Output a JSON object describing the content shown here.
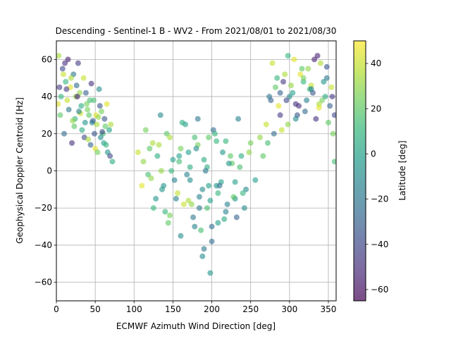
{
  "chart_data": {
    "type": "scatter",
    "title": "Descending - Sentinel-1 B - WV2 - From 2021/08/01 to 2021/08/30",
    "xlabel": "ECMWF Azimuth Wind Direction [deg]",
    "ylabel": "Geophysical Doppler Centroid [Hz]",
    "xlim": [
      0,
      360
    ],
    "ylim": [
      -70,
      70
    ],
    "xticks": [
      0,
      50,
      100,
      150,
      200,
      250,
      300,
      350
    ],
    "yticks": [
      -60,
      -40,
      -20,
      0,
      20,
      40,
      60
    ],
    "grid": true,
    "marker_alpha": 0.6,
    "colorbar": {
      "label": "Latitude [deg]",
      "range": [
        -65,
        50
      ],
      "ticks": [
        -60,
        -40,
        -20,
        0,
        20,
        40
      ],
      "colormap": "viridis",
      "colors": [
        "#440154",
        "#482878",
        "#3e4989",
        "#31688e",
        "#26828e",
        "#1f9e89",
        "#35b779",
        "#6ece58",
        "#b5de2b",
        "#fde725"
      ]
    },
    "series": [
      {
        "description": "left lobe (mixed latitudes)",
        "x": [
          3,
          8,
          12,
          15,
          18,
          22,
          25,
          28,
          32,
          35,
          38,
          42,
          45,
          48,
          52,
          55,
          58,
          62,
          65,
          68,
          5,
          10,
          14,
          20,
          24,
          30,
          36,
          40,
          46,
          50,
          56,
          60,
          66,
          70,
          4,
          9,
          16,
          21,
          27,
          33,
          39,
          44,
          51,
          57,
          63,
          69,
          6,
          11,
          19,
          26,
          31,
          37,
          43,
          49,
          54,
          61,
          2,
          13,
          23,
          29,
          41,
          47,
          53,
          59,
          64,
          72
        ],
        "y": [
          62,
          55,
          48,
          60,
          45,
          52,
          40,
          58,
          35,
          50,
          42,
          30,
          47,
          38,
          25,
          44,
          32,
          28,
          36,
          22,
          30,
          20,
          38,
          15,
          28,
          42,
          18,
          33,
          26,
          12,
          35,
          20,
          10,
          25,
          45,
          52,
          33,
          27,
          40,
          22,
          36,
          14,
          30,
          18,
          24,
          8,
          40,
          58,
          50,
          46,
          31,
          26,
          38,
          20,
          29,
          15,
          36,
          44,
          24,
          32,
          17,
          27,
          10,
          21,
          14,
          5
        ],
        "lat": [
          35,
          -40,
          10,
          -55,
          45,
          -20,
          30,
          -45,
          5,
          40,
          -30,
          20,
          -50,
          15,
          35,
          -10,
          25,
          -35,
          45,
          0,
          20,
          -25,
          40,
          -50,
          10,
          30,
          -40,
          25,
          -15,
          45,
          -35,
          15,
          -5,
          35,
          -45,
          40,
          -20,
          30,
          -55,
          5,
          25,
          -30,
          45,
          -10,
          20,
          -40,
          10,
          -50,
          35,
          -25,
          40,
          -5,
          15,
          -35,
          30,
          0,
          45,
          -45,
          20,
          -15,
          35,
          -30,
          25,
          -40,
          10,
          5
        ]
      },
      {
        "description": "central cluster (mostly equatorial latitudes)",
        "x": [
          105,
          112,
          118,
          124,
          130,
          136,
          142,
          148,
          154,
          160,
          166,
          172,
          178,
          184,
          190,
          196,
          202,
          208,
          214,
          220,
          226,
          232,
          238,
          244,
          250,
          256,
          110,
          120,
          128,
          135,
          140,
          146,
          152,
          158,
          164,
          170,
          176,
          182,
          188,
          194,
          200,
          206,
          212,
          218,
          224,
          230,
          236,
          242,
          248,
          115,
          125,
          132,
          138,
          144,
          150,
          156,
          162,
          168,
          174,
          180,
          186,
          192,
          198,
          204,
          210,
          216,
          222,
          228,
          234,
          240,
          122,
          134,
          146,
          158,
          170,
          182,
          194,
          206,
          218,
          230,
          160,
          172,
          184,
          196,
          208,
          190,
          200,
          178,
          188,
          198
        ],
        "y": [
          10,
          5,
          -2,
          15,
          8,
          -10,
          20,
          0,
          -15,
          12,
          25,
          -5,
          18,
          -20,
          6,
          -8,
          22,
          -12,
          10,
          -18,
          4,
          -25,
          8,
          -10,
          15,
          -5,
          -8,
          12,
          -15,
          0,
          -22,
          18,
          -5,
          5,
          -18,
          10,
          -25,
          14,
          -10,
          2,
          -30,
          16,
          -6,
          -22,
          8,
          -15,
          2,
          -20,
          10,
          22,
          -20,
          14,
          -8,
          -28,
          6,
          -12,
          26,
          -2,
          -18,
          12,
          -32,
          0,
          -16,
          20,
          -8,
          -26,
          4,
          -14,
          28,
          -12,
          -4,
          30,
          -24,
          8,
          -16,
          28,
          -20,
          -8,
          16,
          -6,
          -35,
          2,
          -14,
          18,
          -28,
          -42,
          -38,
          -30,
          -46,
          -55
        ],
        "lat": [
          40,
          30,
          15,
          35,
          5,
          -5,
          20,
          10,
          -15,
          25,
          0,
          -10,
          15,
          -20,
          5,
          0,
          -25,
          10,
          -5,
          -15,
          20,
          -30,
          5,
          -10,
          25,
          0,
          45,
          20,
          -5,
          30,
          10,
          35,
          -15,
          15,
          40,
          0,
          -20,
          25,
          -10,
          5,
          -25,
          10,
          0,
          -15,
          20,
          -5,
          15,
          -10,
          30,
          25,
          10,
          35,
          -5,
          20,
          0,
          40,
          5,
          -15,
          30,
          -10,
          15,
          -20,
          0,
          10,
          -25,
          5,
          -5,
          20,
          -15,
          10,
          30,
          -10,
          25,
          0,
          35,
          -20,
          15,
          -5,
          10,
          0,
          -10,
          5,
          -15,
          20,
          0,
          -20,
          -25,
          -15,
          -10,
          -5
        ],
        "description_note": ""
      },
      {
        "description": "right lobe (mixed latitudes)",
        "x": [
          270,
          276,
          282,
          288,
          294,
          300,
          306,
          312,
          318,
          324,
          330,
          336,
          342,
          348,
          354,
          358,
          272,
          280,
          286,
          292,
          298,
          304,
          310,
          316,
          322,
          328,
          334,
          340,
          346,
          352,
          356,
          274,
          284,
          290,
          296,
          302,
          308,
          314,
          320,
          326,
          332,
          338,
          344,
          350,
          355,
          278,
          288,
          298,
          308,
          318,
          328,
          338,
          348,
          262,
          266,
          358
        ],
        "y": [
          25,
          38,
          45,
          30,
          52,
          40,
          60,
          35,
          48,
          55,
          42,
          62,
          38,
          50,
          45,
          30,
          15,
          20,
          35,
          48,
          25,
          42,
          30,
          55,
          38,
          46,
          28,
          58,
          40,
          35,
          20,
          40,
          50,
          22,
          38,
          46,
          28,
          52,
          32,
          44,
          60,
          36,
          48,
          26,
          40,
          58,
          42,
          62,
          36,
          50,
          44,
          34,
          56,
          18,
          8,
          5
        ],
        "lat": [
          40,
          -30,
          20,
          -45,
          35,
          -10,
          45,
          -50,
          10,
          30,
          -35,
          -55,
          25,
          -20,
          40,
          -40,
          15,
          -25,
          45,
          -45,
          30,
          0,
          -35,
          20,
          -15,
          40,
          -50,
          35,
          5,
          -30,
          25,
          -20,
          10,
          40,
          -40,
          30,
          -10,
          45,
          -25,
          15,
          -55,
          35,
          -5,
          20,
          -45,
          40,
          -30,
          10,
          -50,
          25,
          -15,
          45,
          -35,
          30,
          20,
          15
        ]
      }
    ]
  }
}
